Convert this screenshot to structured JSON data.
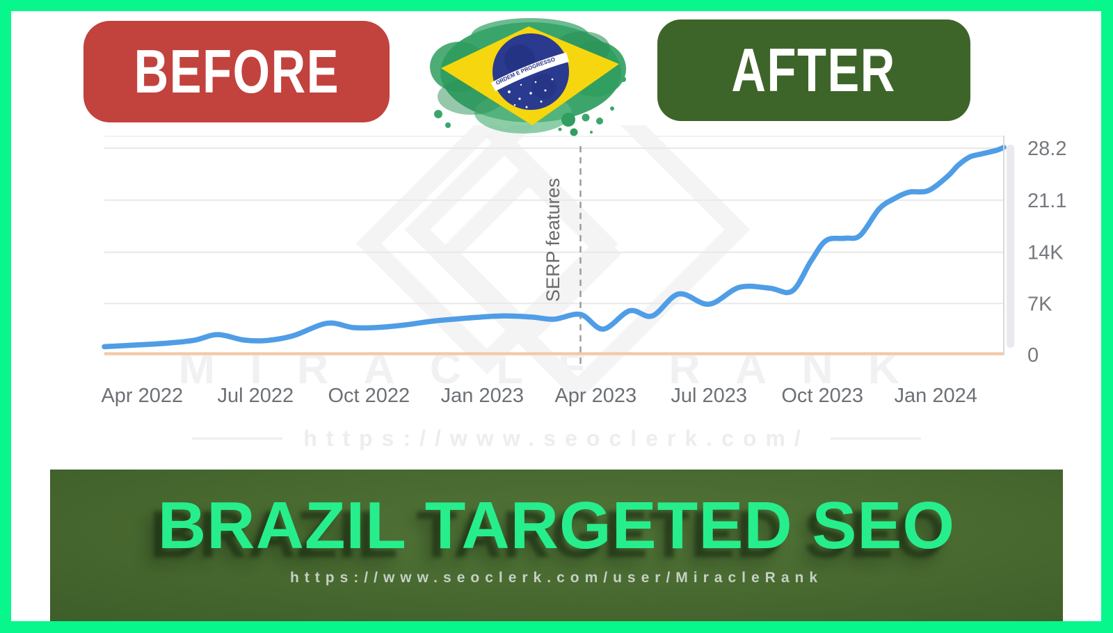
{
  "header": {
    "before_label": "BEFORE",
    "after_label": "AFTER",
    "flag_motto": "ORDEM E PROGRESSO"
  },
  "chart_data": {
    "type": "line",
    "x_tick_labels": [
      "Apr 2022",
      "Jul 2022",
      "Oct 2022",
      "Jan 2023",
      "Apr 2023",
      "Jul 2023",
      "Oct 2023",
      "Jan 2024"
    ],
    "x_tick_positions_months": [
      1,
      4,
      7,
      10,
      13,
      16,
      19,
      22
    ],
    "x_range_months": [
      0,
      23.8
    ],
    "y_tick_labels": [
      "28.2K",
      "21.1K",
      "14K",
      "7K",
      "0"
    ],
    "y_tick_values": [
      28.2,
      21.1,
      14,
      7,
      0
    ],
    "y_range": [
      0,
      28.2
    ],
    "grid": true,
    "legend": "none",
    "annotation": {
      "label": "SERP features",
      "x_months": 12.6
    },
    "series": [
      {
        "name": "traffic-clicks",
        "color": "#4F9DE6",
        "points_months_value_k": [
          [
            0,
            1.1
          ],
          [
            0.9,
            1.35
          ],
          [
            1.7,
            1.6
          ],
          [
            2.4,
            2.0
          ],
          [
            3.0,
            2.75
          ],
          [
            3.7,
            2.0
          ],
          [
            4.3,
            1.95
          ],
          [
            5.0,
            2.6
          ],
          [
            5.9,
            4.3
          ],
          [
            6.6,
            3.7
          ],
          [
            7.3,
            3.75
          ],
          [
            8.0,
            4.1
          ],
          [
            8.7,
            4.6
          ],
          [
            9.6,
            5.0
          ],
          [
            10.5,
            5.3
          ],
          [
            11.3,
            5.15
          ],
          [
            11.9,
            4.85
          ],
          [
            12.6,
            5.5
          ],
          [
            13.2,
            3.5
          ],
          [
            13.9,
            6.0
          ],
          [
            14.5,
            5.3
          ],
          [
            15.2,
            8.3
          ],
          [
            16.0,
            6.9
          ],
          [
            16.8,
            9.2
          ],
          [
            17.6,
            9.1
          ],
          [
            18.2,
            8.7
          ],
          [
            18.7,
            12.8
          ],
          [
            19.1,
            15.6
          ],
          [
            19.6,
            15.9
          ],
          [
            20.0,
            16.3
          ],
          [
            20.5,
            19.9
          ],
          [
            20.9,
            21.3
          ],
          [
            21.3,
            22.2
          ],
          [
            21.8,
            22.4
          ],
          [
            22.3,
            24.3
          ],
          [
            22.6,
            25.9
          ],
          [
            22.9,
            27.0
          ],
          [
            23.2,
            27.4
          ],
          [
            23.6,
            27.9
          ],
          [
            23.8,
            28.3
          ]
        ]
      },
      {
        "name": "baseline-flat",
        "color": "#F4C8A4",
        "points_months_value_k": [
          [
            0,
            0.15
          ],
          [
            23.8,
            0.15
          ]
        ]
      }
    ]
  },
  "watermarks": {
    "brand_text": "MIRACLE RANK",
    "site_url": "https://www.seoclerk.com/"
  },
  "footer": {
    "headline": "BRAZIL TARGETED SEO",
    "url": "https://www.seoclerk.com/user/MiracleRank"
  },
  "colors": {
    "frame_green": "#07F78D",
    "headline_green": "#27EE8C",
    "before_red": "#C2423D",
    "after_green": "#3E6529",
    "banner_green": "#47682F",
    "line_blue": "#4F9DE6",
    "baseline_orange": "#F4C8A4",
    "grid_gray": "#e8e8e8",
    "axis_text_gray": "#6c7075",
    "dashed_gray": "#9b9b9b"
  }
}
